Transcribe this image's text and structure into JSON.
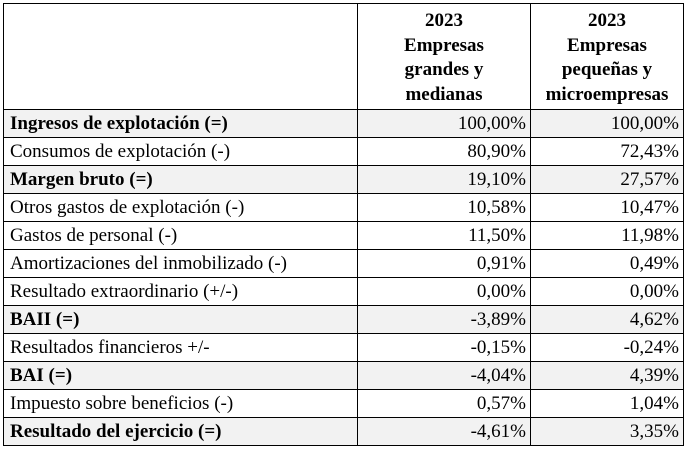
{
  "header": {
    "col1": {
      "year": "2023",
      "lines": [
        "Empresas",
        "grandes y",
        "medianas"
      ]
    },
    "col2": {
      "year": "2023",
      "lines": [
        "Empresas",
        "pequeñas y",
        "microempresas"
      ]
    }
  },
  "rows": [
    {
      "label": "Ingresos de explotación (=)",
      "v1": "100,00%",
      "v2": "100,00%",
      "bold": true,
      "shaded": true
    },
    {
      "label": "Consumos de explotación (-)",
      "v1": "80,90%",
      "v2": "72,43%",
      "bold": false,
      "shaded": false
    },
    {
      "label": "Margen bruto (=)",
      "v1": "19,10%",
      "v2": "27,57%",
      "bold": true,
      "shaded": true
    },
    {
      "label": "Otros gastos de explotación (-)",
      "v1": "10,58%",
      "v2": "10,47%",
      "bold": false,
      "shaded": false
    },
    {
      "label": "Gastos de personal (-)",
      "v1": "11,50%",
      "v2": "11,98%",
      "bold": false,
      "shaded": false
    },
    {
      "label": "Amortizaciones del inmobilizado (-)",
      "v1": "0,91%",
      "v2": "0,49%",
      "bold": false,
      "shaded": false
    },
    {
      "label": "Resultado extraordinario (+/-)",
      "v1": "0,00%",
      "v2": "0,00%",
      "bold": false,
      "shaded": false
    },
    {
      "label": "BAII (=)",
      "v1": "-3,89%",
      "v2": "4,62%",
      "bold": true,
      "shaded": true
    },
    {
      "label": "Resultados financieros +/-",
      "v1": "-0,15%",
      "v2": "-0,24%",
      "bold": false,
      "shaded": false
    },
    {
      "label": "BAI (=)",
      "v1": "-4,04%",
      "v2": "4,39%",
      "bold": true,
      "shaded": true
    },
    {
      "label": "Impuesto sobre beneficios (-)",
      "v1": "0,57%",
      "v2": "1,04%",
      "bold": false,
      "shaded": false
    },
    {
      "label": "Resultado del ejercicio (=)",
      "v1": "-4,61%",
      "v2": "3,35%",
      "bold": true,
      "shaded": true
    }
  ]
}
